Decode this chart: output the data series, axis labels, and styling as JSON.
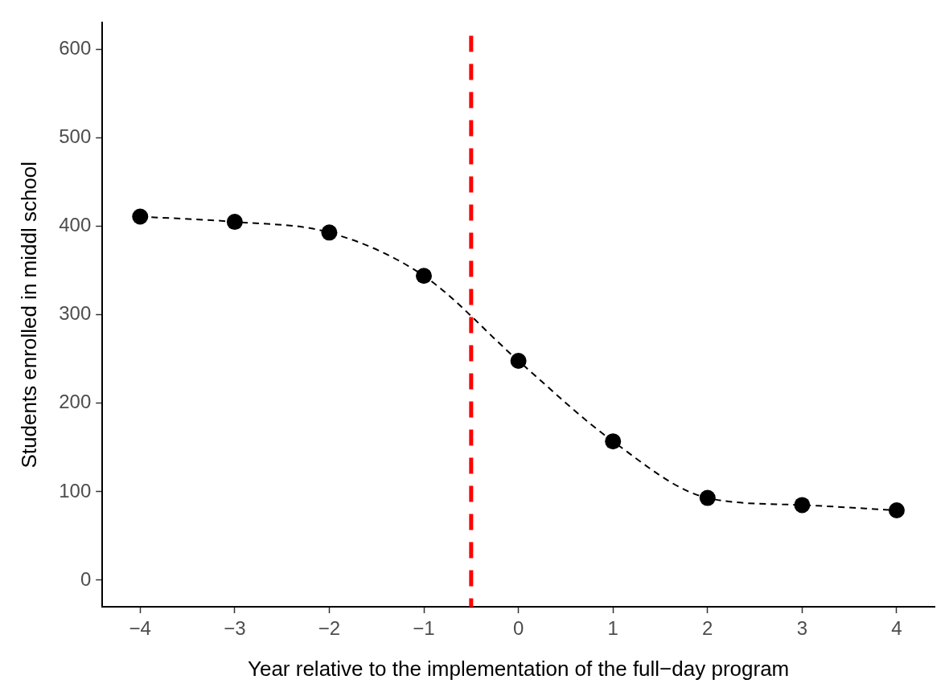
{
  "chart_data": {
    "type": "line",
    "xlabel": "Year relative to the implementation of the full−day program",
    "ylabel": "Students enrolled in middl school",
    "x": [
      -4,
      -3,
      -2,
      -1,
      0,
      1,
      2,
      3,
      4
    ],
    "series": [
      {
        "color": "#000000",
        "values": [
          411,
          405,
          393,
          344,
          248,
          157,
          93,
          85,
          79
        ]
      }
    ],
    "marker": "circle",
    "line_style": "dashed",
    "grid": false,
    "legend": false,
    "xlim": [
      -4.4,
      4.4
    ],
    "xticks": [
      {
        "value": -4,
        "label": "−4"
      },
      {
        "value": -3,
        "label": "−3"
      },
      {
        "value": -2,
        "label": "−2"
      },
      {
        "value": -1,
        "label": "−1"
      },
      0,
      1,
      2,
      3,
      4
    ],
    "ylim": [
      -30,
      630
    ],
    "yticks": [
      0,
      100,
      200,
      300,
      400,
      500,
      600
    ],
    "ref_lines": [
      {
        "axis": "x",
        "value": -0.5,
        "color": "#ff0000",
        "line_style": "dashed"
      }
    ]
  }
}
